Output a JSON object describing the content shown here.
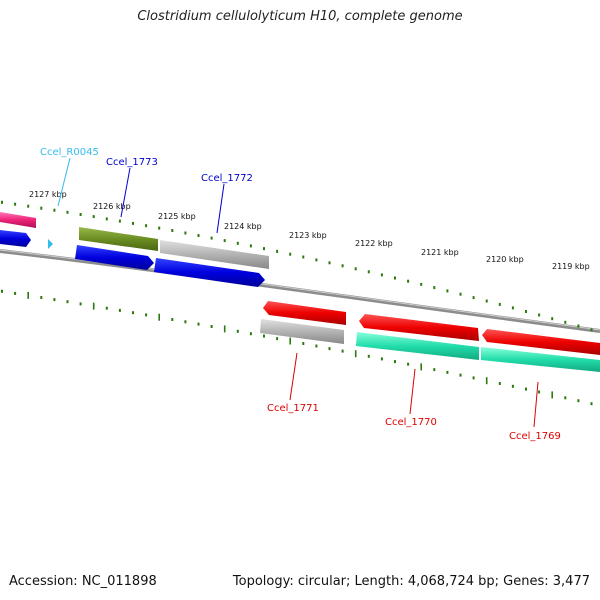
{
  "title": "Clostridium cellulolyticum H10, complete genome",
  "accession_text": "Accession: NC_011898",
  "summary_text": "Topology: circular; Length: 4,068,724 bp; Genes: 3,477",
  "ruler": {
    "upper_labels": [
      "2127 kbp",
      "2126 kbp",
      "2125 kbp",
      "2124 kbp",
      "2123 kbp",
      "2122 kbp",
      "2121 kbp",
      "2120 kbp",
      "2119 kbp"
    ]
  },
  "genes": {
    "top": [
      {
        "name": "Ccel_R0045",
        "color": "#33bbee"
      },
      {
        "name": "Ccel_1773",
        "color": "#0000cc"
      },
      {
        "name": "Ccel_1772",
        "color": "#0000cc"
      }
    ],
    "bottom": [
      {
        "name": "Ccel_1771",
        "color": "#dd0000"
      },
      {
        "name": "Ccel_1770",
        "color": "#dd0000"
      },
      {
        "name": "Ccel_1769",
        "color": "#dd0000"
      }
    ]
  },
  "colors": {
    "backbone": "#8c8c8c",
    "tick": "#2a7a10",
    "pink_gene": "#ee2277",
    "blue_gene": "#0000dd",
    "olive_gene": "#6b8e23",
    "gray_gene": "#b3b3b3",
    "red_gene": "#ee0000",
    "green_gene": "#22ddaa",
    "trna": "#33bbee"
  }
}
